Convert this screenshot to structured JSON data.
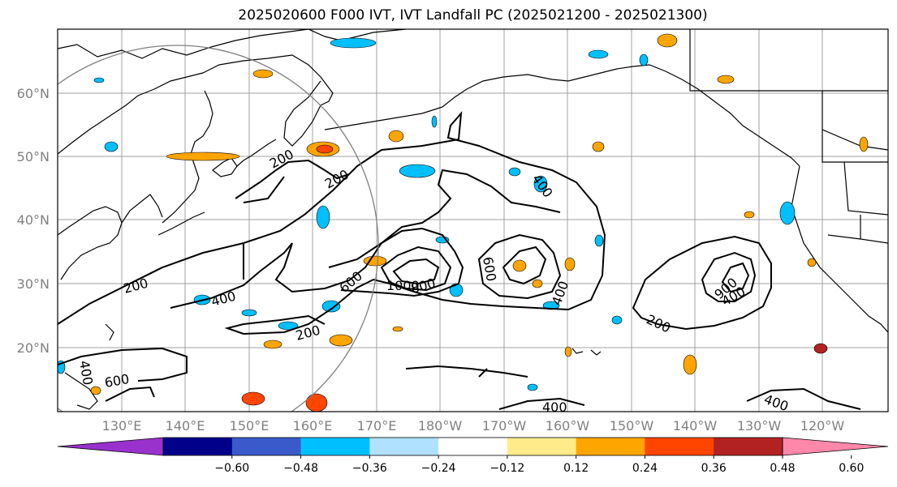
{
  "title": "2025020600 F000 IVT, IVT Landfall PC (2025021200 - 2025021300)",
  "lat_labels": [
    "60°N",
    "50°N",
    "40°N",
    "30°N",
    "20°N"
  ],
  "lon_labels": [
    "130°E",
    "140°E",
    "150°E",
    "160°E",
    "170°E",
    "180°W",
    "170°W",
    "160°W",
    "150°W",
    "140°W",
    "130°W",
    "120°W"
  ],
  "contour_labels": [
    "200",
    "200",
    "200",
    "200",
    "200",
    "400",
    "400",
    "400",
    "400",
    "400",
    "400",
    "600",
    "600",
    "800",
    "1000",
    "600",
    "900",
    "400",
    "400",
    "200"
  ],
  "colorbar": {
    "colors": [
      "#9932cc",
      "#00008b",
      "#3a5acb",
      "#00bfff",
      "#b0e2ff",
      "#ffffff",
      "#ffeb8a",
      "#ffa500",
      "#ff4500",
      "#b22222",
      "#ff88aa"
    ],
    "ticks": [
      "−0.60",
      "−0.48",
      "−0.36",
      "−0.24",
      "−0.12",
      "0.12",
      "0.24",
      "0.36",
      "0.48",
      "0.60"
    ]
  }
}
